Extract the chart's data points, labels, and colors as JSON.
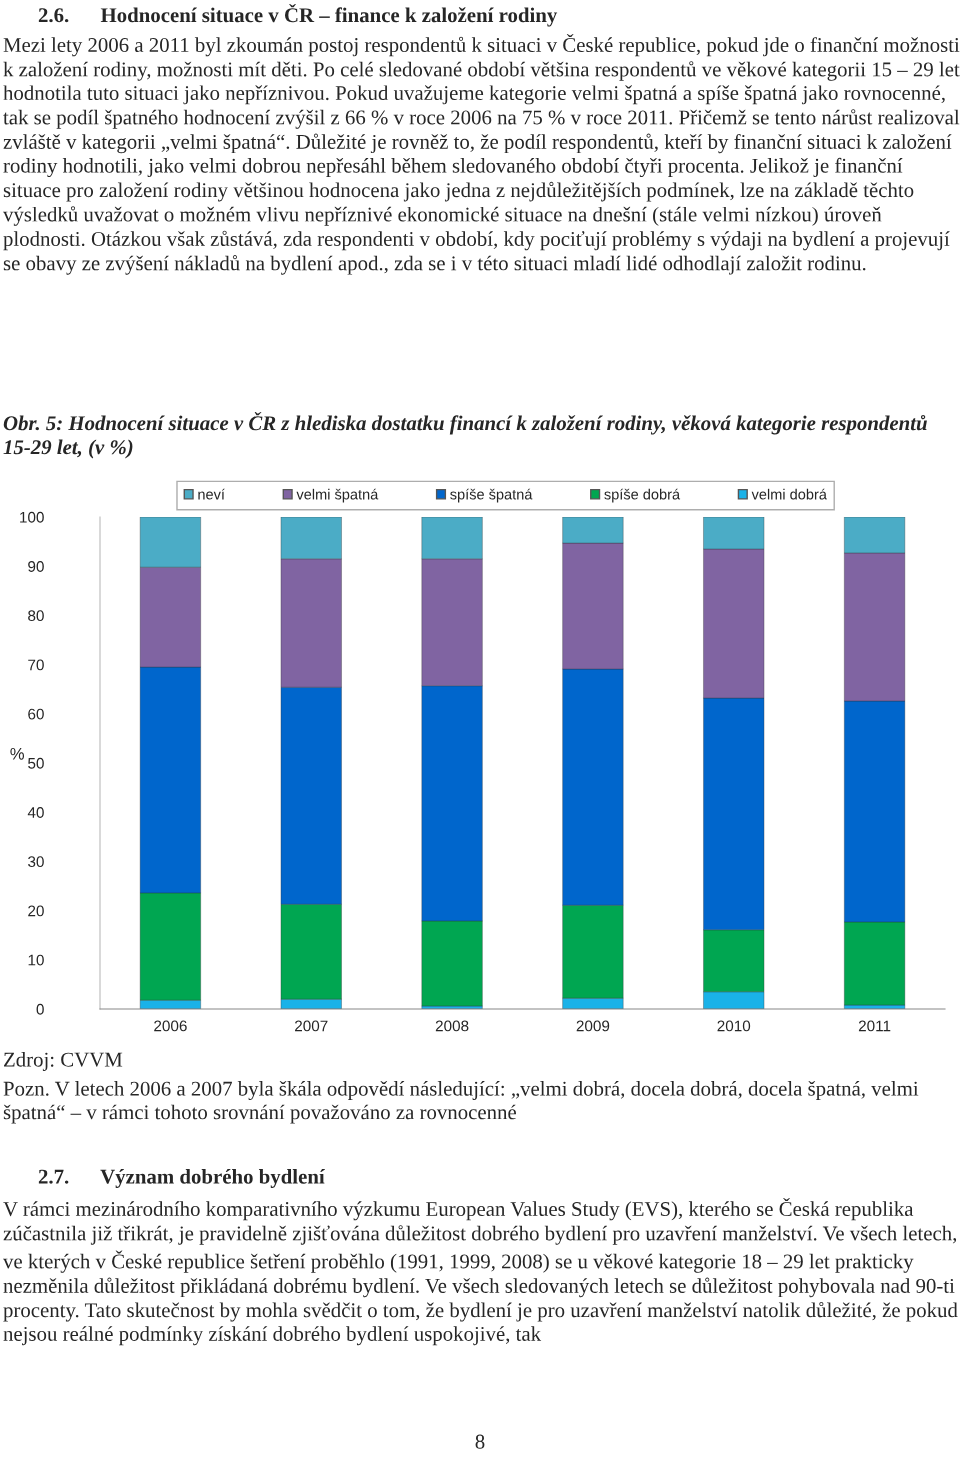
{
  "chart_data": {
    "type": "bar",
    "stacked": true,
    "title": "Obr. 5: Hodnocení situace v ČR z hlediska dostatku financí k založení rodiny, věková kategorie respondentů 15-29 let, (v %)",
    "ylabel": "%",
    "categories": [
      "2006",
      "2007",
      "2008",
      "2009",
      "2010",
      "2011"
    ],
    "series": [
      {
        "name": "velmi dobrá",
        "color": "#1ab2e8",
        "values": [
          1.8,
          2.0,
          0.6,
          2.2,
          3.5,
          0.8
        ]
      },
      {
        "name": "spíše dobrá",
        "color": "#00a651",
        "values": [
          21.8,
          19.3,
          17.3,
          18.9,
          12.6,
          16.9
        ]
      },
      {
        "name": "spíše špatná",
        "color": "#0066cc",
        "values": [
          45.9,
          44.1,
          47.8,
          48.0,
          47.1,
          44.9
        ]
      },
      {
        "name": "velmi špatná",
        "color": "#8064a2",
        "values": [
          20.3,
          26.1,
          25.8,
          25.6,
          30.3,
          30.1
        ]
      },
      {
        "name": "neví",
        "color": "#4bacc6",
        "values": [
          10.2,
          8.5,
          8.5,
          5.3,
          6.5,
          7.3
        ]
      }
    ],
    "ylim": [
      0,
      100
    ],
    "yticks": [
      0,
      10,
      20,
      30,
      40,
      50,
      60,
      70,
      80,
      90,
      100
    ],
    "legend": "top",
    "grid": false,
    "annotations": [
      "2.6.      Hodnocení situace v ČR – finance k založení rodiny",
      "Mezi lety 2006 a 2011 byl zkoumán postoj respondentů k situaci v České republice, pokud jde o finanční možnosti k založení rodiny, možnosti mít děti. Po celé sledované období většina respondentů ve věkové kategorii 15 – 29 let hodnotila tuto situaci jako nepříznivou. Pokud uvažujeme kategorie velmi špatná a spíše špatná jako rovnocenné, tak se podíl špatného hodnocení zvýšil z 66 % v roce 2006 na 75 % v roce 2011. Přičemž se tento nárůst realizoval zvláště v kategorii „velmi špatná“. Důležité je rovněž to, že podíl respondentů, kteří by finanční situaci k založení rodiny hodnotili, jako velmi dobrou nepřesáhl během sledovaného období čtyři procenta. Jelikož je finanční situace pro založení rodiny většinou hodnocena jako jedna z nejdůležitějších podmínek, lze na základě těchto výsledků uvažovat o možném vlivu nepříznivé ekonomické situace na dnešní (stále velmi nízkou) úroveň plodnosti. Otázkou však zůstává, zda respondenti v období, kdy pociťují problémy s výdaji na bydlení a projevují se obavy ze zvýšení nákladů na bydlení apod., zda se i v této situaci mladí lidé odhodlají založit rodinu.",
      "Zdroj: CVVM",
      "Pozn. V letech 2006 a 2007 byla škála odpovědí následující: „velmi dobrá, docela dobrá, docela špatná, velmi špatná“ – v rámci tohoto srovnání považováno za rovnocenné",
      "2.7.      Význam dobrého bydlení",
      "V rámci mezinárodního komparativního výzkumu European Values Study (EVS), kterého se Česká republika zúčastnila již třikrát, je pravidelně zjišťována důležitost dobrého bydlení pro uzavření manželství. Ve všech letech, ve kterých v České republice šetření proběhlo (1991, 1999, 2008) se u věkové kategorie 18 – 29 let prakticky nezměnila důležitost přikládaná dobrému bydlení. Ve všech sledovaných letech se důležitost pohybovala nad 90-ti procenty. Tato skutečnost by mohla svědčit o tom, že bydlení je pro uzavření manželství natolik důležité, že pokud nejsou reálné podmínky získání dobrého bydlení uspokojivé, tak",
      "8"
    ]
  }
}
